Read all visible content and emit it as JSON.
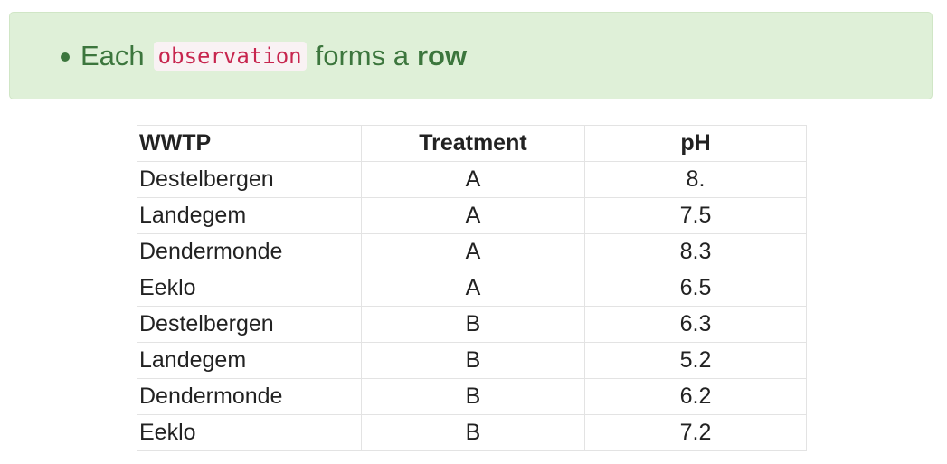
{
  "callout": {
    "text_before": "Each",
    "code": "observation",
    "text_middle": "forms a",
    "bold": "row"
  },
  "table": {
    "headers": [
      "WWTP",
      "Treatment",
      "pH"
    ],
    "rows": [
      [
        "Destelbergen",
        "A",
        "8."
      ],
      [
        "Landegem",
        "A",
        "7.5"
      ],
      [
        "Dendermonde",
        "A",
        "8.3"
      ],
      [
        "Eeklo",
        "A",
        "6.5"
      ],
      [
        "Destelbergen",
        "B",
        "6.3"
      ],
      [
        "Landegem",
        "B",
        "5.2"
      ],
      [
        "Dendermonde",
        "B",
        "6.2"
      ],
      [
        "Eeklo",
        "B",
        "7.2"
      ]
    ]
  }
}
